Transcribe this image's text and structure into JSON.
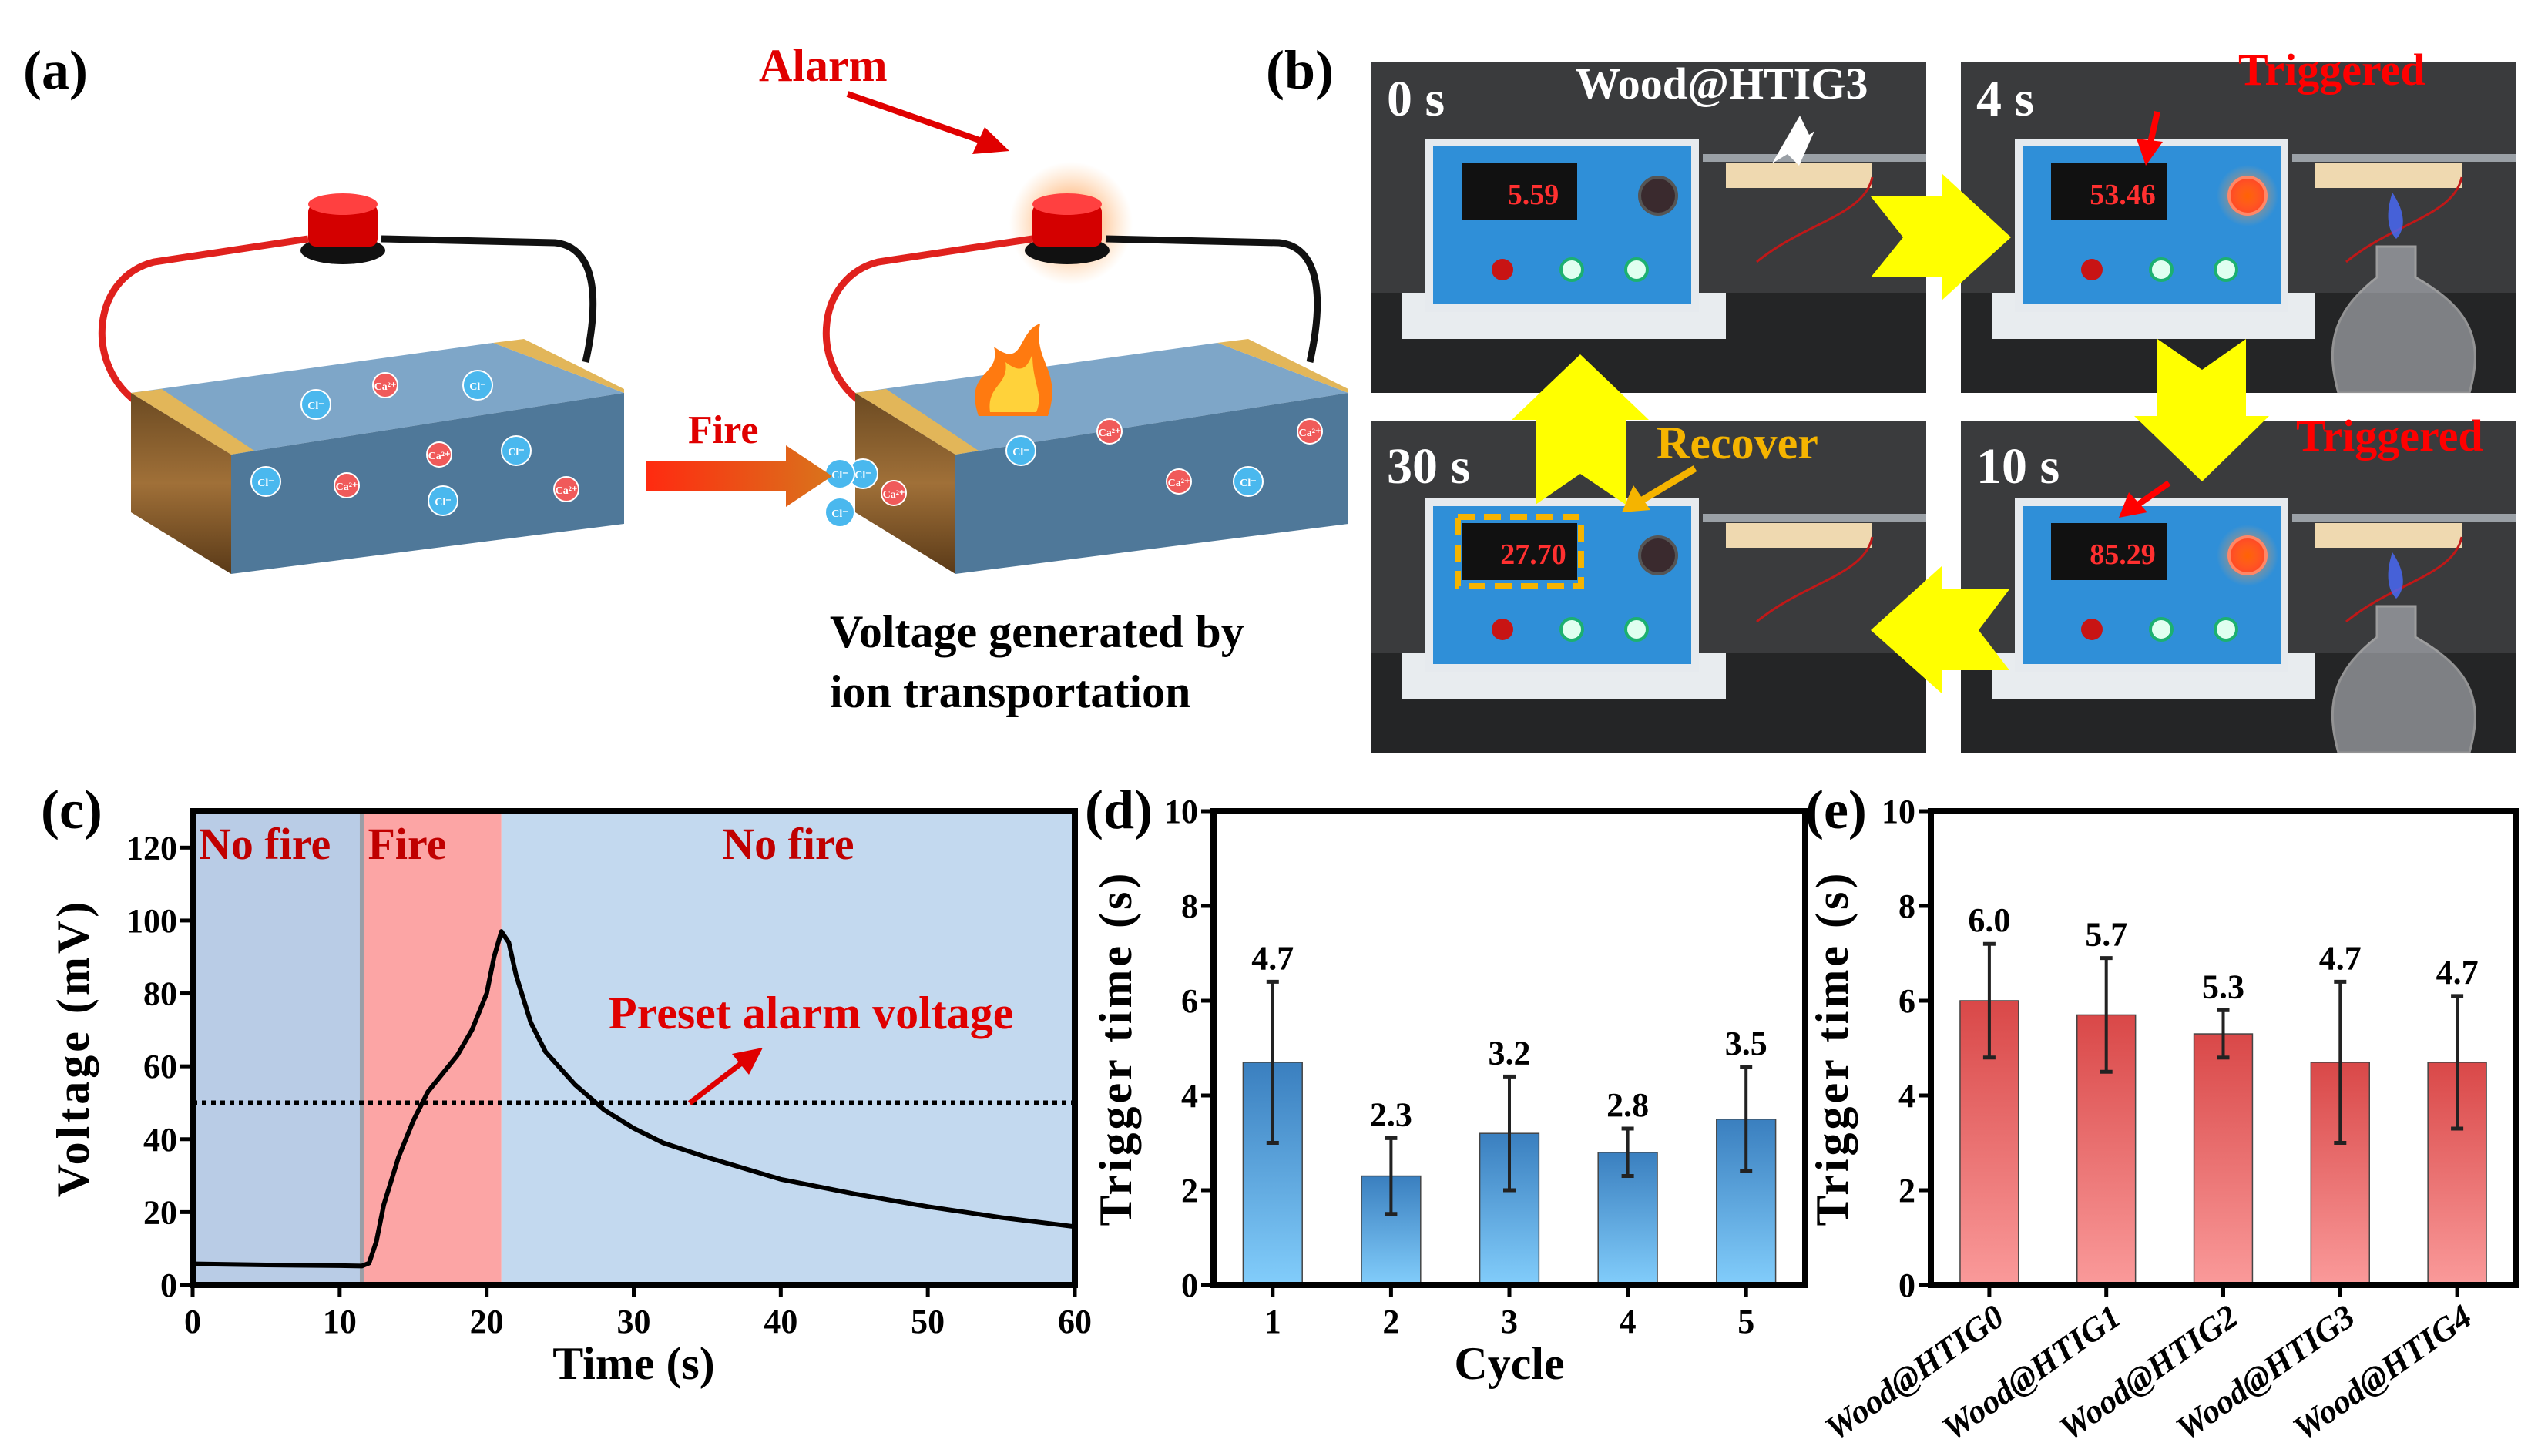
{
  "panels": {
    "a": "(a)",
    "b": "(b)",
    "c": "(c)",
    "d": "(d)",
    "e": "(e)"
  },
  "panel_a": {
    "alarm_label": "Alarm",
    "fire_label": "Fire",
    "caption_line1": "Voltage  generated  by",
    "caption_line2": "ion transportation",
    "ion_labels": {
      "anion": "Cl⁻",
      "cation": "Ca²⁺"
    },
    "colors": {
      "battery_top": "#7ea6c8",
      "battery_front": "#4f7899",
      "electrode": "#e2b659",
      "wire_red": "#e0211d",
      "alarm_red": "#d40000"
    }
  },
  "panel_b": {
    "sample_label": "Wood@HTIG3",
    "recover_label": "Recover",
    "photos": [
      {
        "time": "0 s",
        "display": "5.59",
        "alarm_on": false,
        "flame": false,
        "status": ""
      },
      {
        "time": "4 s",
        "display": "53.46",
        "alarm_on": true,
        "flame": true,
        "status": "Triggered"
      },
      {
        "time": "30 s",
        "display": "27.70",
        "alarm_on": false,
        "flame": false,
        "status": ""
      },
      {
        "time": "10 s",
        "display": "85.29",
        "alarm_on": true,
        "flame": true,
        "status": "Triggered"
      }
    ],
    "colors": {
      "arrow": "#ffff00",
      "status": "#ff0000",
      "recover": "#f5b400",
      "device": "#2f8fd8"
    }
  },
  "chart_data": [
    {
      "id": "c",
      "type": "line",
      "xlabel": "Time (s)",
      "ylabel": "Voltage (mV)",
      "xlim": [
        0,
        60
      ],
      "ylim": [
        0,
        130
      ],
      "xticks": [
        0,
        10,
        20,
        30,
        40,
        50,
        60
      ],
      "yticks": [
        0,
        20,
        40,
        60,
        80,
        100,
        120
      ],
      "regions": [
        {
          "label": "No fire",
          "from": 0,
          "to": 11.5,
          "color": "#b9cce6"
        },
        {
          "label": "Fire",
          "from": 11.5,
          "to": 21,
          "color": "#fca5a5"
        },
        {
          "label": "No fire",
          "from": 21,
          "to": 60,
          "color": "#c3d9ef"
        }
      ],
      "threshold": {
        "label": "Preset alarm voltage",
        "value": 50
      },
      "series": [
        {
          "x": [
            0,
            5,
            10,
            11.5,
            12,
            12.5,
            13,
            14,
            15,
            16,
            17,
            18,
            19,
            20,
            20.5,
            21,
            21.5,
            22,
            23,
            24,
            26,
            28,
            30,
            32,
            35,
            40,
            45,
            50,
            55,
            60
          ],
          "y": [
            5.8,
            5.5,
            5.3,
            5.2,
            6,
            12,
            22,
            35,
            45,
            53,
            58,
            63,
            70,
            80,
            90,
            97,
            94,
            85,
            72,
            64,
            55,
            48,
            43,
            39,
            35,
            29,
            25,
            21.5,
            18.5,
            16
          ]
        }
      ],
      "grid": false
    },
    {
      "id": "d",
      "type": "bar",
      "xlabel": "Cycle",
      "ylabel": "Trigger time (s)",
      "ylim": [
        0,
        10
      ],
      "yticks": [
        0,
        2,
        4,
        6,
        8,
        10
      ],
      "categories": [
        "1",
        "2",
        "3",
        "4",
        "5"
      ],
      "values": [
        4.7,
        2.3,
        3.2,
        2.8,
        3.5
      ],
      "value_labels": [
        "4.7",
        "2.3",
        "3.2",
        "2.8",
        "3.5"
      ],
      "error_low": [
        3.0,
        1.5,
        2.0,
        2.3,
        2.4
      ],
      "error_high": [
        6.4,
        3.1,
        4.4,
        3.3,
        4.6
      ],
      "colors": {
        "top": "#3a7fbf",
        "bottom": "#82cdfb"
      },
      "grid": false
    },
    {
      "id": "e",
      "type": "bar",
      "xlabel": "",
      "ylabel": "Trigger time (s)",
      "ylim": [
        0,
        10
      ],
      "yticks": [
        0,
        2,
        4,
        6,
        8,
        10
      ],
      "categories": [
        "Wood@HTIG0",
        "Wood@HTIG1",
        "Wood@HTIG2",
        "Wood@HTIG3",
        "Wood@HTIG4"
      ],
      "values": [
        6.0,
        5.7,
        5.3,
        4.7,
        4.7
      ],
      "value_labels": [
        "6.0",
        "5.7",
        "5.3",
        "4.7",
        "4.7"
      ],
      "error_low": [
        4.8,
        4.5,
        4.8,
        3.0,
        3.3
      ],
      "error_high": [
        7.2,
        6.9,
        5.8,
        6.4,
        6.1
      ],
      "colors": {
        "top": "#d94848",
        "bottom": "#fa9a9a"
      },
      "grid": false
    }
  ]
}
